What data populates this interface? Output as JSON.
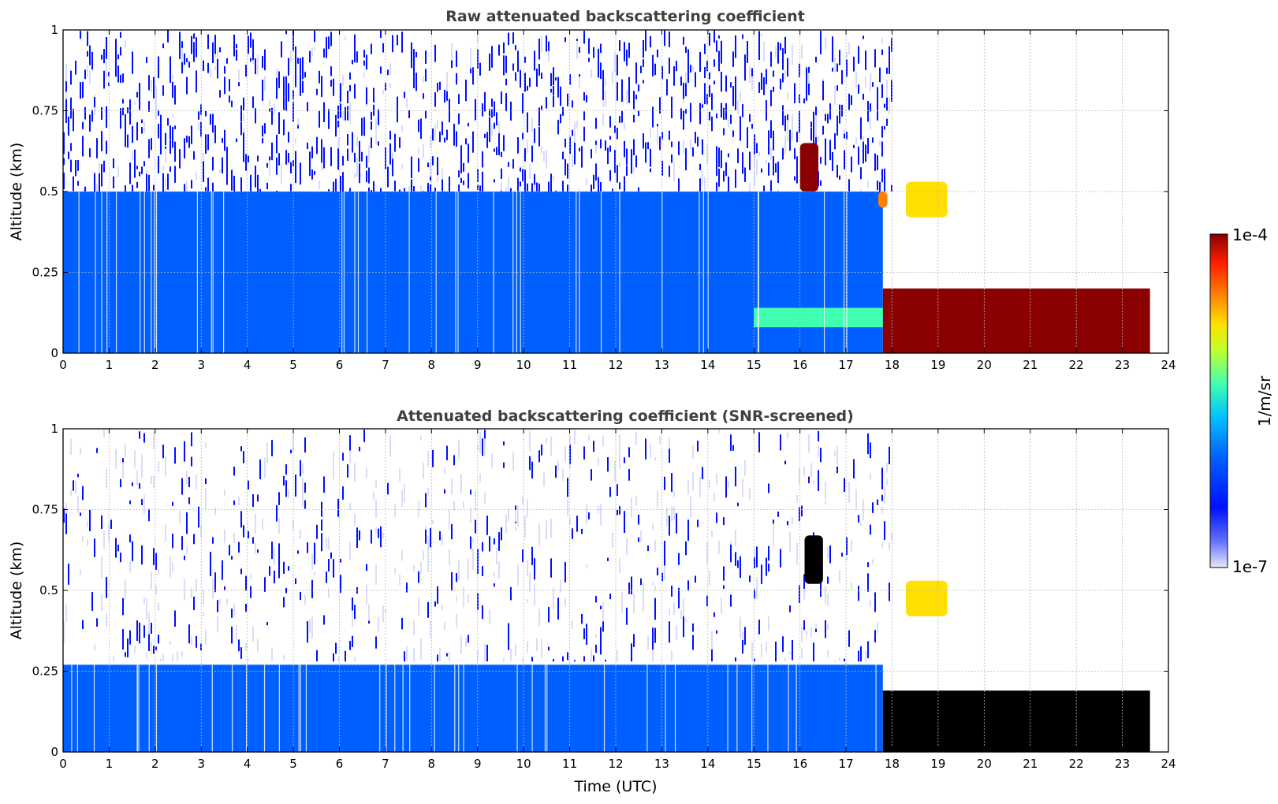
{
  "colors": {
    "colormap": [
      "#e8e8f8",
      "#0010ff",
      "#0060ff",
      "#00c0ff",
      "#40ffb0",
      "#c0ff30",
      "#ffe000",
      "#ff8000",
      "#ff2000",
      "#8b0000"
    ],
    "screened": "#000000",
    "grid": "#b8b8b8",
    "title": "#404040"
  },
  "chart_data": [
    {
      "type": "heatmap",
      "title": "Raw attenuated backscattering coefficient",
      "xlabel": "",
      "ylabel": "Altitude (km)",
      "xlim": [
        0,
        24
      ],
      "ylim": [
        0,
        1
      ],
      "xticks": [
        "0",
        "1",
        "2",
        "3",
        "4",
        "5",
        "6",
        "7",
        "8",
        "9",
        "10",
        "11",
        "12",
        "13",
        "14",
        "15",
        "16",
        "17",
        "18",
        "19",
        "20",
        "21",
        "22",
        "23",
        "24"
      ],
      "yticks": [
        "0",
        "0.25",
        "0.5",
        "0.75",
        "1"
      ],
      "grid": true,
      "colorbar": {
        "min": "1e-7",
        "max": "1e-4",
        "label": "1/m/sr"
      },
      "features": [
        {
          "name": "noise",
          "t": [
            0,
            18
          ],
          "z": [
            0.5,
            1
          ],
          "level": 1
        },
        {
          "name": "boundary_layer",
          "t": [
            0,
            17.8
          ],
          "z": [
            0,
            0.5
          ],
          "level": 2
        },
        {
          "name": "cloud_16h",
          "t": [
            16.0,
            16.4
          ],
          "z": [
            0.5,
            0.65
          ],
          "level": 9
        },
        {
          "name": "cloud_17_8h",
          "t": [
            17.7,
            17.9
          ],
          "z": [
            0.45,
            0.5
          ],
          "level": 7
        },
        {
          "name": "cloud_18_5h",
          "t": [
            18.3,
            19.2
          ],
          "z": [
            0.42,
            0.53
          ],
          "level": 6
        },
        {
          "name": "low_cloud",
          "t": [
            17.8,
            23.6
          ],
          "z": [
            0,
            0.2
          ],
          "level": 9
        },
        {
          "name": "low_aerosol_15h",
          "t": [
            15.0,
            17.8
          ],
          "z": [
            0.08,
            0.14
          ],
          "level": 4
        }
      ]
    },
    {
      "type": "heatmap",
      "title": "Attenuated backscattering coefficient (SNR-screened)",
      "xlabel": "Time (UTC)",
      "ylabel": "Altitude (km)",
      "xlim": [
        0,
        24
      ],
      "ylim": [
        0,
        1
      ],
      "xticks": [
        "0",
        "1",
        "2",
        "3",
        "4",
        "5",
        "6",
        "7",
        "8",
        "9",
        "10",
        "11",
        "12",
        "13",
        "14",
        "15",
        "16",
        "17",
        "18",
        "19",
        "20",
        "21",
        "22",
        "23",
        "24"
      ],
      "yticks": [
        "0",
        "0.25",
        "0.5",
        "0.75",
        "1"
      ],
      "grid": true,
      "features": [
        {
          "name": "screened_noise",
          "t": [
            0,
            18
          ],
          "z": [
            0.28,
            1
          ],
          "level": 0
        },
        {
          "name": "boundary_layer",
          "t": [
            0,
            17.8
          ],
          "z": [
            0,
            0.27
          ],
          "level": 2
        },
        {
          "name": "cloud_16h",
          "t": [
            16.1,
            16.5
          ],
          "z": [
            0.52,
            0.67
          ],
          "level": -1
        },
        {
          "name": "cloud_18_5h",
          "t": [
            18.3,
            19.2
          ],
          "z": [
            0.42,
            0.53
          ],
          "level": 6
        },
        {
          "name": "low_cloud",
          "t": [
            17.8,
            23.6
          ],
          "z": [
            0,
            0.19
          ],
          "level": -1
        }
      ]
    }
  ]
}
